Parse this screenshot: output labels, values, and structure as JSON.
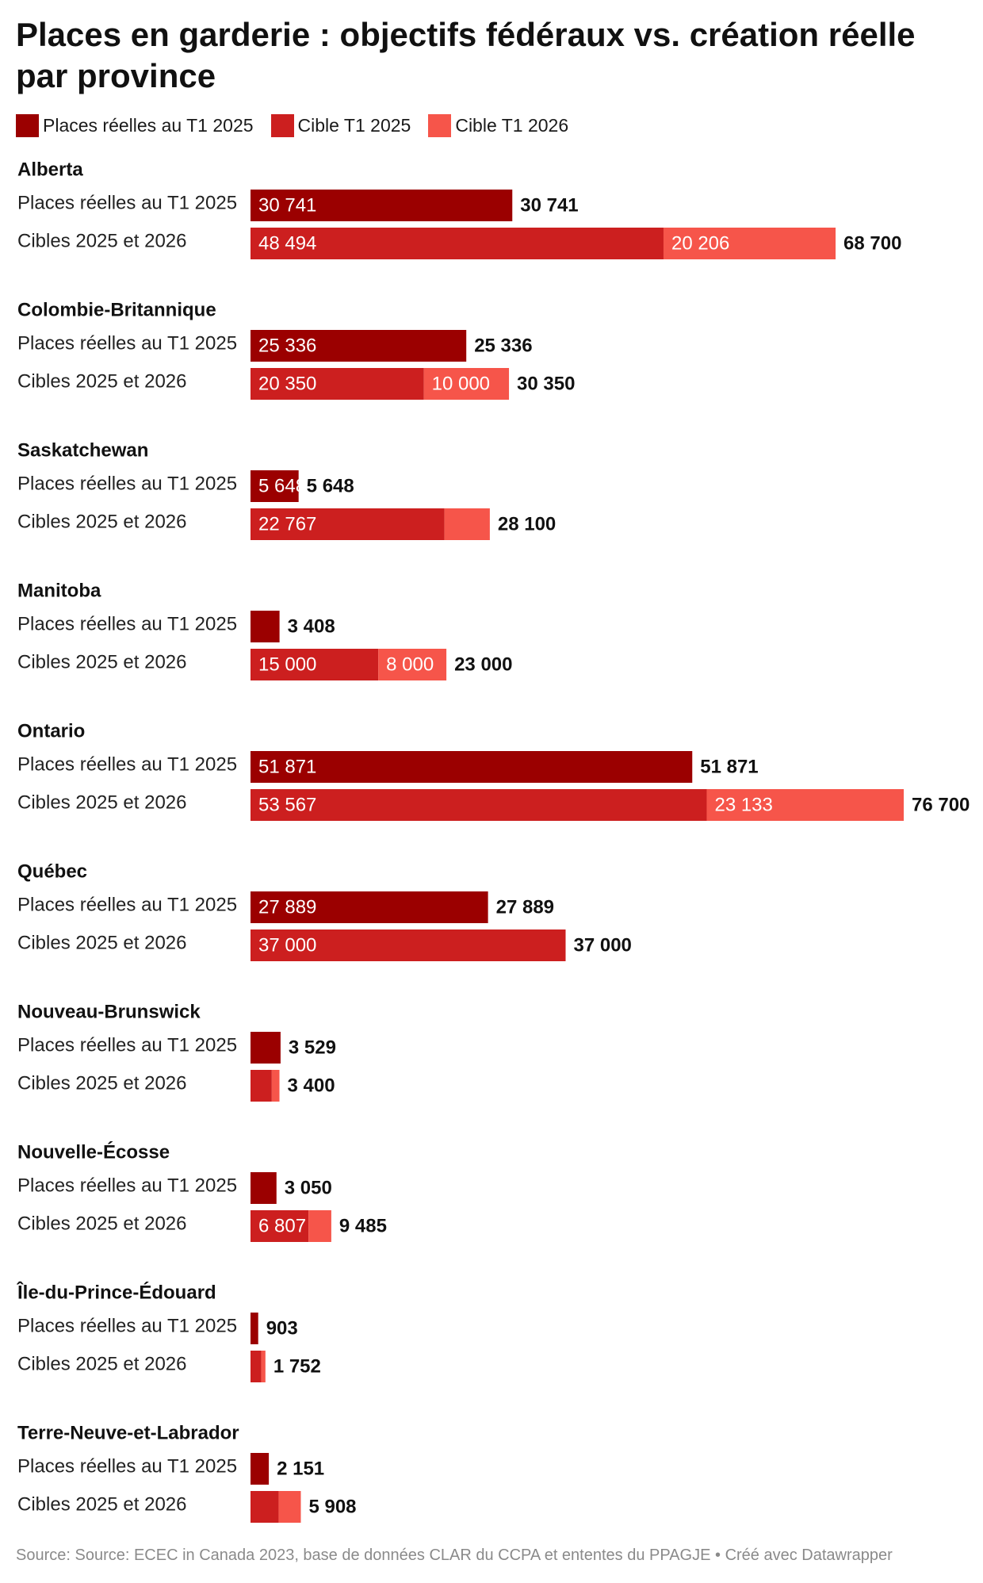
{
  "title": "Places en garderie : objectifs fédéraux vs. création réelle par province",
  "legend": [
    {
      "label": "Places réelles au T1 2025",
      "color": "#9b0000"
    },
    {
      "label": "Cible T1 2025",
      "color": "#cc1f1f"
    },
    {
      "label": "Cible T1 2026",
      "color": "#f6554a"
    }
  ],
  "source": "Source: Source: ECEC in Canada 2023, base de données CLAR du CCPA et ententes du PPAGJE • Créé avec Datawrapper",
  "chart_data": {
    "type": "bar",
    "orientation": "horizontal",
    "stacked": true,
    "row_labels": [
      "Places réelles au T1 2025",
      "Cibles 2025 et 2026"
    ],
    "colors": {
      "reelles": "#9b0000",
      "cible2025": "#cc1f1f",
      "cible2026": "#f6554a"
    },
    "groups": [
      {
        "province": "Alberta",
        "reelles": 30741,
        "reelles_label": "30 741",
        "cible2025": 48494,
        "cible2025_label": "48 494",
        "cible2026": 20206,
        "cible2026_label": "20 206",
        "total_label": "68 700"
      },
      {
        "province": "Colombie-Britannique",
        "reelles": 25336,
        "reelles_label": "25 336",
        "cible2025": 20350,
        "cible2025_label": "20 350",
        "cible2026": 10000,
        "cible2026_label": "10 000",
        "total_label": "30 350"
      },
      {
        "province": "Saskatchewan",
        "reelles": 5648,
        "reelles_label": "5 648",
        "cible2025": 22767,
        "cible2025_label": "22 767",
        "cible2026": 5333,
        "cible2026_label": "",
        "total_label": "28 100"
      },
      {
        "province": "Manitoba",
        "reelles": 3408,
        "reelles_label": "3 408",
        "cible2025": 15000,
        "cible2025_label": "15 000",
        "cible2026": 8000,
        "cible2026_label": "8 000",
        "total_label": "23 000"
      },
      {
        "province": "Ontario",
        "reelles": 51871,
        "reelles_label": "51 871",
        "cible2025": 53567,
        "cible2025_label": "53 567",
        "cible2026": 23133,
        "cible2026_label": "23 133",
        "total_label": "76 700"
      },
      {
        "province": "Québec",
        "reelles": 27889,
        "reelles_label": "27 889",
        "cible2025": 37000,
        "cible2025_label": "37 000",
        "cible2026": 0,
        "cible2026_label": "",
        "total_label": "37 000"
      },
      {
        "province": "Nouveau-Brunswick",
        "reelles": 3529,
        "reelles_label": "3 529",
        "cible2025": 2500,
        "cible2025_label": "",
        "cible2026": 900,
        "cible2026_label": "",
        "total_label": "3 400"
      },
      {
        "province": "Nouvelle-Écosse",
        "reelles": 3050,
        "reelles_label": "3 050",
        "cible2025": 6807,
        "cible2025_label": "6 807",
        "cible2026": 2678,
        "cible2026_label": "",
        "total_label": "9 485"
      },
      {
        "province": "Île-du-Prince-Édouard",
        "reelles": 903,
        "reelles_label": "903",
        "cible2025": 1252,
        "cible2025_label": "",
        "cible2026": 500,
        "cible2026_label": "",
        "total_label": "1 752"
      },
      {
        "province": "Terre-Neuve-et-Labrador",
        "reelles": 2151,
        "reelles_label": "2 151",
        "cible2025": 3300,
        "cible2025_label": "",
        "cible2026": 2608,
        "cible2026_label": "",
        "total_label": "5 908"
      }
    ]
  }
}
